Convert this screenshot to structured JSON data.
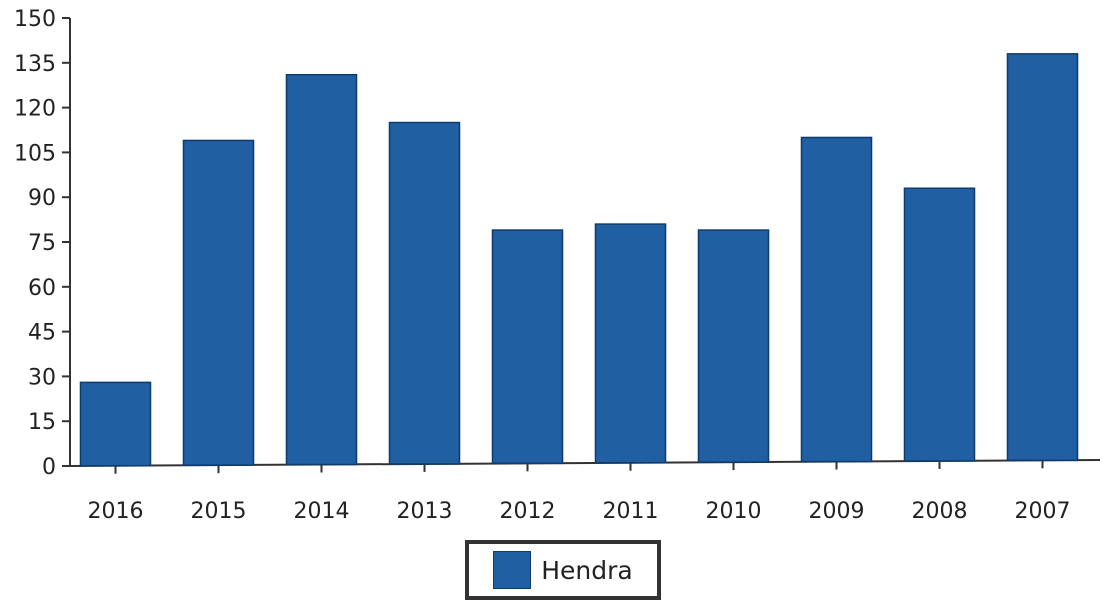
{
  "chart_data": {
    "type": "bar",
    "title": "",
    "xlabel": "",
    "ylabel": "",
    "categories": [
      "2016",
      "2015",
      "2014",
      "2013",
      "2012",
      "2011",
      "2010",
      "2009",
      "2008",
      "2007"
    ],
    "series": [
      {
        "name": "Hendra",
        "values": [
          28,
          109,
          131,
          115,
          79,
          81,
          79,
          110,
          93,
          138
        ]
      }
    ],
    "ylim": [
      0,
      150
    ],
    "yticks": [
      0,
      15,
      30,
      45,
      60,
      75,
      90,
      105,
      120,
      135,
      150
    ],
    "grid": false,
    "legend_position": "bottom-center",
    "colors": {
      "bar": "#1f5fa2",
      "bar_edge": "#0f3c6e",
      "axis": "#333333"
    }
  }
}
